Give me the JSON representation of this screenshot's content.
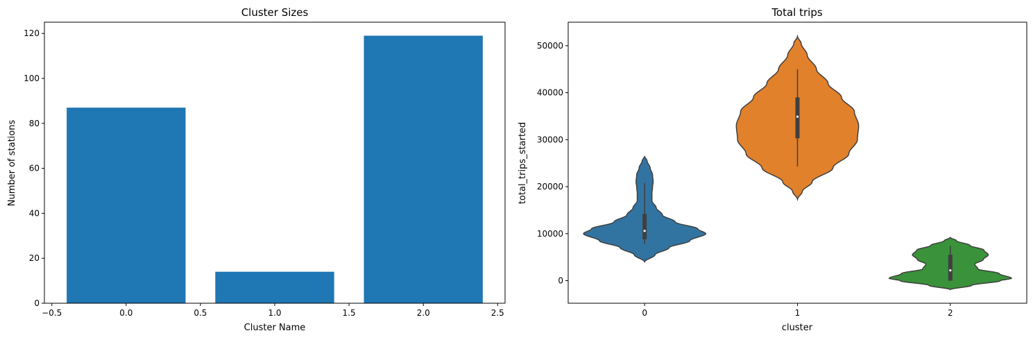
{
  "chart_data": [
    {
      "type": "bar",
      "title": "Cluster Sizes",
      "xlabel": "Cluster Name",
      "ylabel": "Number of stations",
      "x": [
        0,
        1,
        2
      ],
      "values": [
        87,
        14,
        119
      ],
      "color": "#1f77b4",
      "xlim": [
        -0.55,
        2.55
      ],
      "ylim": [
        0,
        125
      ],
      "xticks": [
        -0.5,
        0.0,
        0.5,
        1.0,
        1.5,
        2.0,
        2.5
      ],
      "xtick_labels": [
        "−0.5",
        "0.0",
        "0.5",
        "1.0",
        "1.5",
        "2.0",
        "2.5"
      ],
      "yticks": [
        0,
        20,
        40,
        60,
        80,
        100,
        120
      ],
      "ytick_labels": [
        "0",
        "20",
        "40",
        "60",
        "80",
        "100",
        "120"
      ],
      "grid": false
    },
    {
      "type": "violin",
      "title": "Total trips",
      "xlabel": "cluster",
      "ylabel": "total_trips_started",
      "categories": [
        "0",
        "1",
        "2"
      ],
      "ylim": [
        -4800,
        55000
      ],
      "yticks": [
        0,
        10000,
        20000,
        30000,
        40000,
        50000
      ],
      "ytick_labels": [
        "0",
        "10000",
        "20000",
        "30000",
        "40000",
        "50000"
      ],
      "grid": false,
      "series": [
        {
          "category": "0",
          "color": "#3274a1",
          "density_range": [
            4000,
            26500
          ],
          "density": [
            [
              4000,
              0.0
            ],
            [
              5500,
              0.17
            ],
            [
              7000,
              0.4
            ],
            [
              8500,
              0.74
            ],
            [
              10000,
              1.0
            ],
            [
              11000,
              0.87
            ],
            [
              12500,
              0.5
            ],
            [
              14000,
              0.29
            ],
            [
              15500,
              0.19
            ],
            [
              17000,
              0.12
            ],
            [
              18500,
              0.12
            ],
            [
              20000,
              0.13
            ],
            [
              21000,
              0.14
            ],
            [
              22500,
              0.13
            ],
            [
              24000,
              0.09
            ],
            [
              25500,
              0.04
            ],
            [
              26500,
              0.0
            ]
          ],
          "whisker": [
            7800,
            20800
          ],
          "q1": 8800,
          "median": 10600,
          "q3": 14200
        },
        {
          "category": "1",
          "color": "#e1812c",
          "density_range": [
            17300,
            52000
          ],
          "density": [
            [
              17300,
              0.0
            ],
            [
              19000,
              0.08
            ],
            [
              21000,
              0.24
            ],
            [
              24000,
              0.58
            ],
            [
              27000,
              0.84
            ],
            [
              30000,
              0.98
            ],
            [
              33000,
              1.0
            ],
            [
              36000,
              0.93
            ],
            [
              39000,
              0.72
            ],
            [
              42000,
              0.5
            ],
            [
              45000,
              0.31
            ],
            [
              48000,
              0.16
            ],
            [
              50500,
              0.06
            ],
            [
              52000,
              0.0
            ]
          ],
          "whisker": [
            24300,
            45000
          ],
          "q1": 30300,
          "median": 34900,
          "q3": 39000
        },
        {
          "category": "2",
          "color": "#3a923a",
          "density_range": [
            -1900,
            9200
          ],
          "density": [
            [
              -1900,
              0.0
            ],
            [
              -1000,
              0.35
            ],
            [
              0,
              0.82
            ],
            [
              500,
              1.0
            ],
            [
              1500,
              0.8
            ],
            [
              2500,
              0.45
            ],
            [
              3500,
              0.4
            ],
            [
              4500,
              0.54
            ],
            [
              5500,
              0.62
            ],
            [
              6500,
              0.55
            ],
            [
              7500,
              0.32
            ],
            [
              8500,
              0.1
            ],
            [
              9200,
              0.0
            ]
          ],
          "whisker": [
            0,
            7400
          ],
          "q1": 0,
          "median": 2200,
          "q3": 5500
        }
      ]
    }
  ]
}
